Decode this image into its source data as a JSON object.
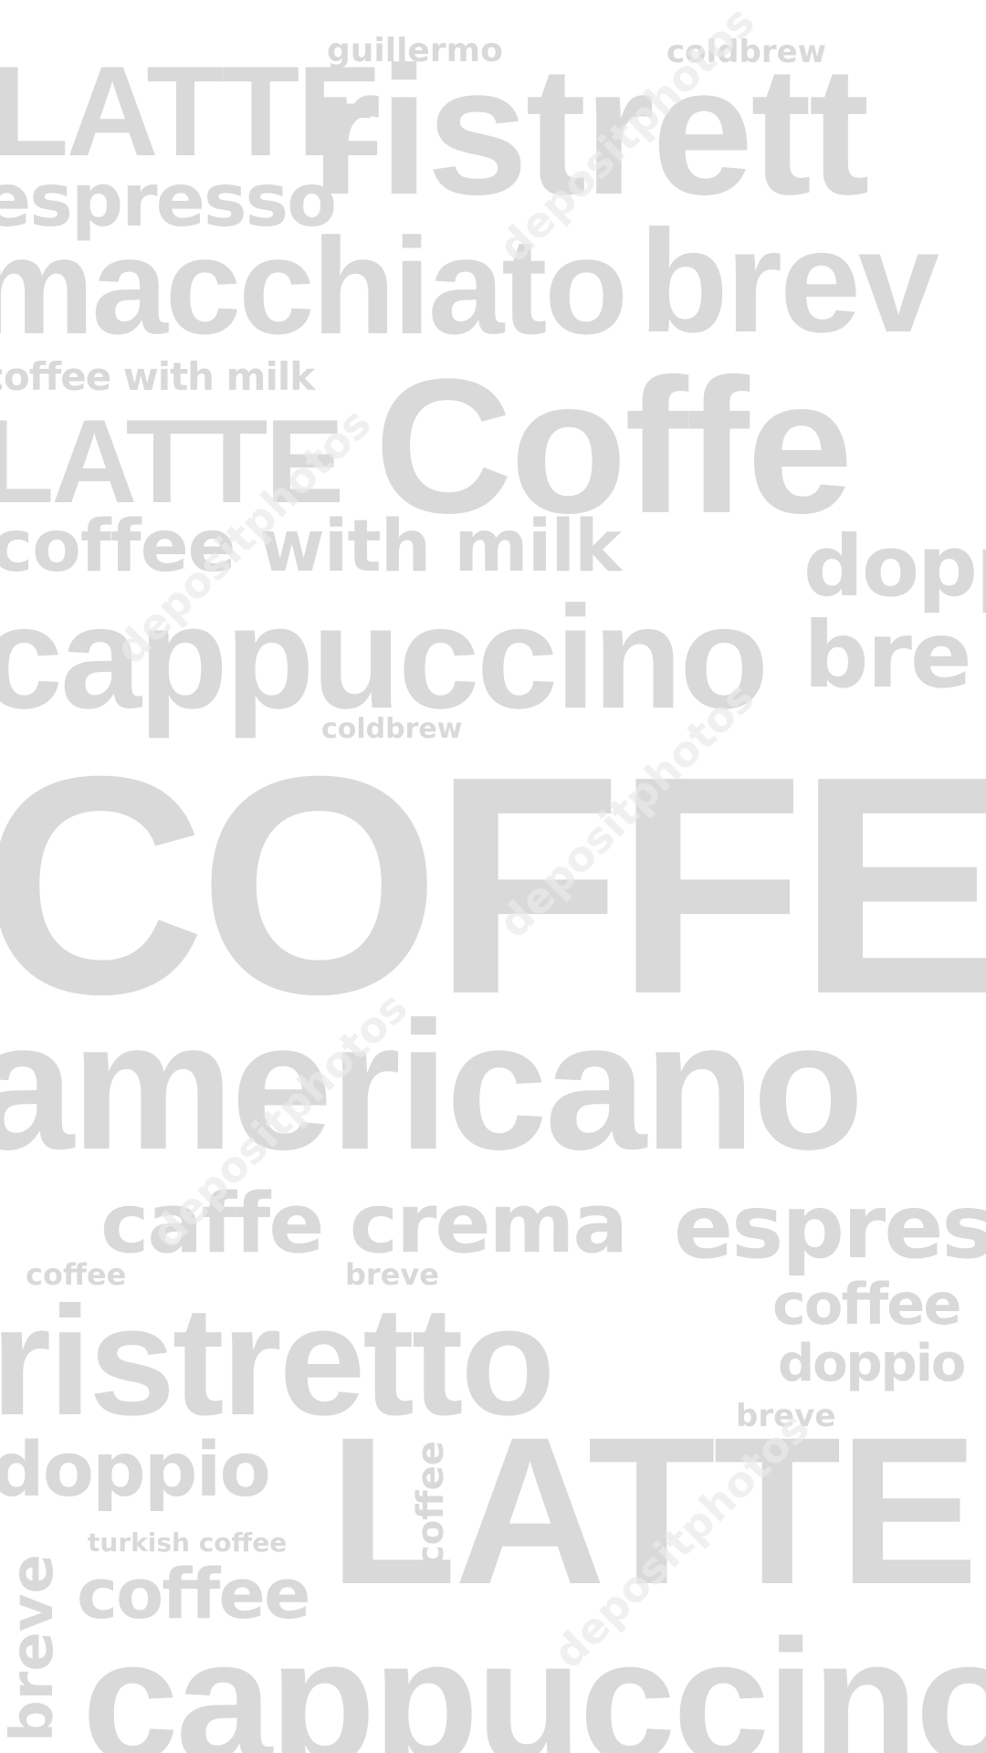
{
  "colors": {
    "background": "#ffffff",
    "text": "#d9d9d9",
    "watermark": "#ebebeb"
  },
  "words": {
    "latte_top": "LATTE",
    "guillermo": "guillermo",
    "coldbrew_top": "coldbrew",
    "ristretto_top": "ristrett",
    "espresso_top": "espresso",
    "macchiato": "macchiato",
    "breve_top": "brev",
    "coffee_with_milk_small": "coffee with milk",
    "latte_mid": "LATTE",
    "coffee_big": "Coffe",
    "coffee_with_milk": "coffee with milk",
    "doppio_top": "dopp",
    "cappuccino_top": "cappuccino",
    "breve_mid": "bre",
    "coldbrew_mid": "coldbrew",
    "coffee_huge": "COFFEE",
    "americano": "americano",
    "caffe_crema": "caffe crema",
    "espresso_mid": "espres",
    "coffee_small": "coffee",
    "breve_small": "breve",
    "ristretto_mid": "ristretto",
    "coffee_right": "coffee",
    "doppio_right": "doppio",
    "breve_right": "breve",
    "doppio_left": "doppio",
    "coffee_vertical": "coffee",
    "latte_bottom": "LATTE",
    "turkish_coffee": "turkish coffee",
    "breve_vertical": "breve",
    "coffee_bottom": "coffee",
    "cappuccino_bottom": "cappuccino"
  },
  "watermarks": [
    "depositphotos",
    "depositphotos",
    "depositphotos",
    "depositphotos",
    "depositphotos"
  ]
}
